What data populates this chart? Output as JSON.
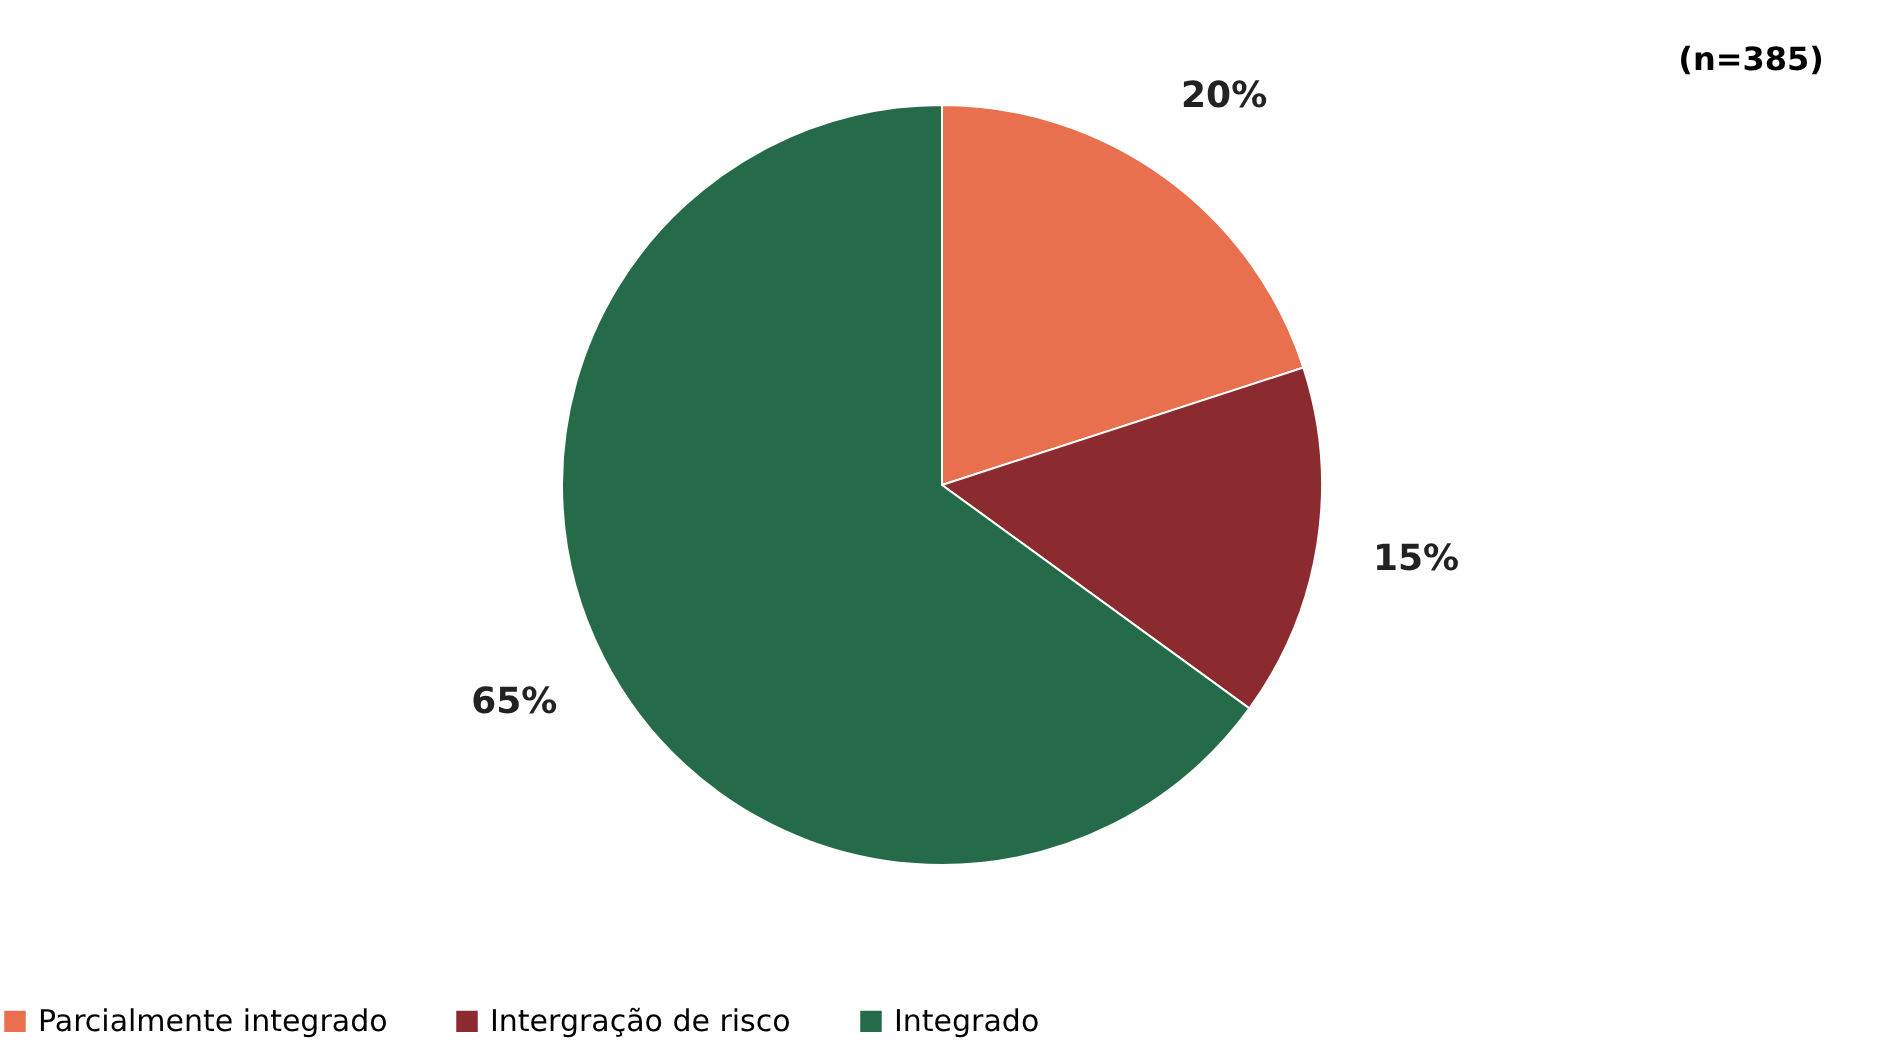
{
  "chart_data": {
    "type": "pie",
    "annotations": [
      "(n=385)"
    ],
    "categories": [
      "Parcialmente integrado",
      "Intergração de risco",
      "Integrado"
    ],
    "values": [
      20,
      15,
      65
    ],
    "colors": [
      "#e8704f",
      "#8c2b2f",
      "#256b4a"
    ],
    "value_labels": [
      "20%",
      "15%",
      "65%"
    ],
    "legend": "bottom"
  }
}
